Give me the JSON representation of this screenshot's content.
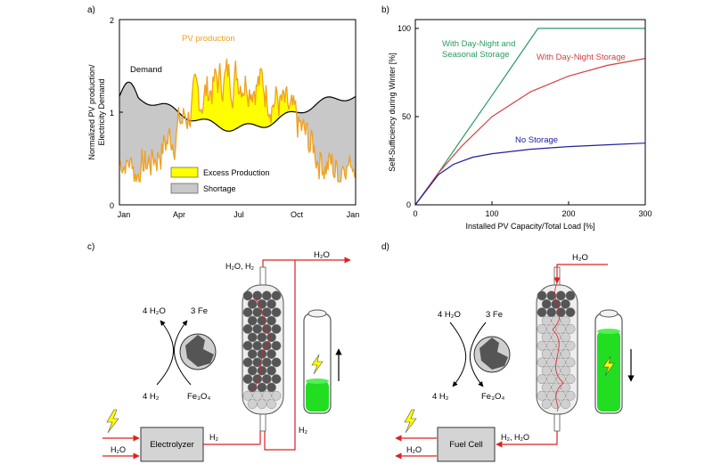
{
  "panel_a": {
    "label": "a)",
    "ylabel_line1": "Normalized PV production/",
    "ylabel_line2": "Electricity Demand",
    "yticks": [
      "0",
      "1",
      "2"
    ],
    "xticks": [
      "Jan",
      "Apr",
      "Jul",
      "Oct",
      "Jan"
    ],
    "pv_label": "PV production",
    "demand_label": "Demand",
    "legend_excess": "Excess Production",
    "legend_shortage": "Shortage",
    "colors": {
      "pv": "#f0a020",
      "demand": "#000000",
      "excess": "#ffff00",
      "shortage": "#c8c8c8"
    }
  },
  "chart_data": {
    "type": "line",
    "xlabel": "Installed PV Capacity/Total Load [%]",
    "ylabel": "Self-Sufficiency during Winter [%]",
    "xlim": [
      0,
      300
    ],
    "ylim": [
      0,
      105
    ],
    "xticks": [
      0,
      100,
      200,
      300
    ],
    "yticks": [
      0,
      50,
      100
    ],
    "series": [
      {
        "name": "With Day-Night and Seasonal Storage",
        "color": "#2a9a60",
        "x": [
          0,
          30,
          60,
          100,
          130,
          160,
          200,
          300
        ],
        "y": [
          0,
          18,
          37,
          62,
          81,
          100,
          100,
          100
        ]
      },
      {
        "name": "With Day-Night Storage",
        "color": "#d04040",
        "x": [
          0,
          30,
          60,
          100,
          150,
          200,
          250,
          300
        ],
        "y": [
          0,
          18,
          33,
          50,
          64,
          73,
          79,
          83
        ]
      },
      {
        "name": "No Storage",
        "color": "#2020a0",
        "x": [
          0,
          30,
          50,
          75,
          100,
          150,
          200,
          250,
          300
        ],
        "y": [
          0,
          17,
          23,
          27,
          29,
          31.5,
          33,
          34,
          35
        ]
      }
    ]
  },
  "panel_b": {
    "label": "b)",
    "ytick_labels": [
      "0",
      "50",
      "100"
    ],
    "xtick_labels": [
      "0",
      "100",
      "200",
      "300"
    ],
    "seasonal_label_line1": "With Day-Night and",
    "seasonal_label_line2": "Seasonal Storage",
    "daynight_label": "With Day-Night Storage",
    "nostorage_label": "No Storage"
  },
  "panel_c": {
    "label": "c)",
    "h2o_out": "H₂O",
    "h2o_h2_top": "H₂O, H₂",
    "left_top": "4 H₂O",
    "right_top": "3 Fe",
    "left_bottom": "4 H₂",
    "right_bottom": "Fe₃O₄",
    "electrolyzer": "Electrolyzer",
    "h2_label": "H₂",
    "h2_label_right": "H₂",
    "h2o_in": "H₂O"
  },
  "panel_d": {
    "label": "d)",
    "h2o_in": "H₂O",
    "left_top": "4 H₂O",
    "right_top": "3 Fe",
    "left_bottom": "4 H₂",
    "right_bottom": "Fe₃O₄",
    "fuel_cell": "Fuel Cell",
    "h2_h2o": "H₂, H₂O",
    "h2o_out": "H₂O"
  }
}
